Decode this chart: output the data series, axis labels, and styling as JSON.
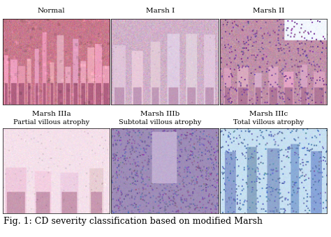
{
  "title": "Fig. 1: CD severity classification based on modified Marsh",
  "background_color": "#ffffff",
  "top_labels": [
    "Normal",
    "Marsh I",
    "Marsh II"
  ],
  "bottom_labels_line1": [
    "Marsh IIIa",
    "Marsh IIIb",
    "Marsh IIIc"
  ],
  "bottom_labels_line2": [
    "Partial villous atrophy",
    "Subtotal villous atrophy",
    "Total villous atrophy"
  ],
  "caption_fontsize": 9,
  "label_fontsize": 7.5,
  "sublabel_fontsize": 7,
  "fig_width": 4.74,
  "fig_height": 3.4,
  "dpi": 100,
  "bg_colors": {
    "normal": "#c8788c",
    "marsh1": "#d0b0c8",
    "marsh2": "#c090a8",
    "marsh3a": "#e8c8d8",
    "marsh3b": "#9888b0",
    "marsh3c": "#b8d8f0"
  },
  "villi_colors": {
    "normal": "#e8a0b8",
    "marsh1": "#e0c8dc",
    "marsh2": "#d8a8c0",
    "marsh3a": "#f0d0e0",
    "marsh3b": "#b8a8cc",
    "marsh3c": "#98c0e8"
  },
  "crypt_colors": {
    "normal": "#b06080",
    "marsh1": "#c098b8",
    "marsh2": "#b07898",
    "marsh3a": "#c898b0",
    "marsh3b": "#887898",
    "marsh3c": "#6890c0"
  }
}
